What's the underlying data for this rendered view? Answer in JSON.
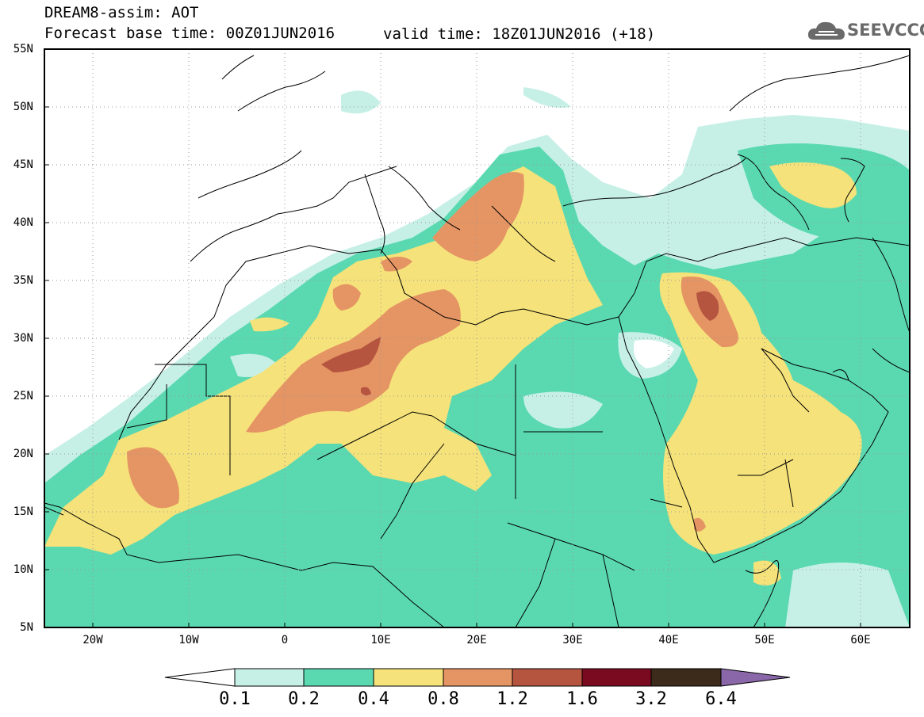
{
  "header": {
    "line1": "DREAM8-assim: AOT",
    "line2": "Forecast base time: 00Z01JUN2016",
    "valid": "valid time: 18Z01JUN2016 (+18)"
  },
  "logo": {
    "text": "SEEVCCC",
    "icon": "cloud-icon"
  },
  "map": {
    "lon_range": [
      -25,
      65
    ],
    "lat_range": [
      5,
      55
    ],
    "y_ticks": [
      "5N",
      "10N",
      "15N",
      "20N",
      "25N",
      "30N",
      "35N",
      "40N",
      "45N",
      "50N",
      "55N"
    ],
    "x_ticks": [
      "20W",
      "10W",
      "0",
      "10E",
      "20E",
      "30E",
      "40E",
      "50E",
      "60E"
    ]
  },
  "colorbar": {
    "labels": [
      "0.1",
      "0.2",
      "0.4",
      "0.8",
      "1.2",
      "1.6",
      "3.2",
      "6.4"
    ],
    "colors": [
      "#ffffff",
      "#c6f0e6",
      "#5ad9b0",
      "#f5e27a",
      "#e59464",
      "#b5543f",
      "#7a0a20",
      "#3c2a1a",
      "#8a67a8"
    ]
  }
}
